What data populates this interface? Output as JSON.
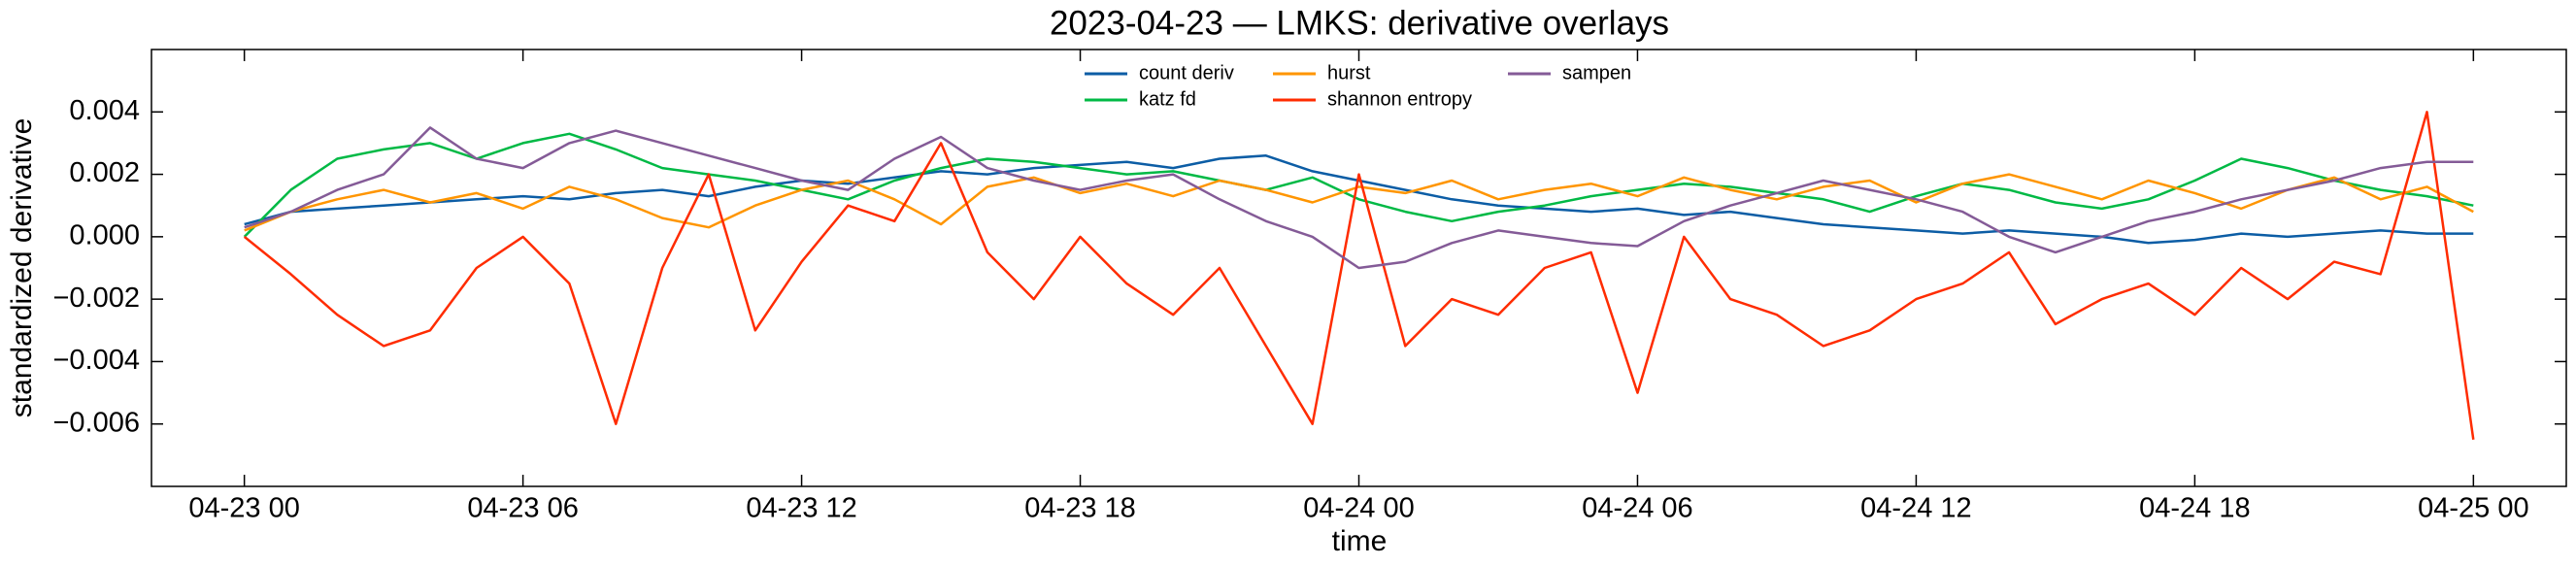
{
  "chart_data": {
    "type": "line",
    "title": "2023-04-23 — LMKS: derivative overlays",
    "x_label": "time",
    "y_label": "standardized derivative",
    "x": [
      "04-23 00",
      "04-23 01",
      "04-23 02",
      "04-23 03",
      "04-23 04",
      "04-23 05",
      "04-23 06",
      "04-23 07",
      "04-23 08",
      "04-23 09",
      "04-23 10",
      "04-23 11",
      "04-23 12",
      "04-23 13",
      "04-23 14",
      "04-23 15",
      "04-23 16",
      "04-23 17",
      "04-23 18",
      "04-23 19",
      "04-23 20",
      "04-23 21",
      "04-23 22",
      "04-23 23",
      "04-24 00",
      "04-24 01",
      "04-24 02",
      "04-24 03",
      "04-24 04",
      "04-24 05",
      "04-24 06",
      "04-24 07",
      "04-24 08",
      "04-24 09",
      "04-24 10",
      "04-24 11",
      "04-24 12",
      "04-24 13",
      "04-24 14",
      "04-24 15",
      "04-24 16",
      "04-24 17",
      "04-24 18",
      "04-24 19",
      "04-24 20",
      "04-24 21",
      "04-24 22",
      "04-24 23",
      "04-25 00"
    ],
    "series": [
      {
        "name": "count deriv",
        "color": "#0c5da5",
        "values": [
          0.0004,
          0.0008,
          0.0009,
          0.001,
          0.0011,
          0.0012,
          0.0013,
          0.0012,
          0.0014,
          0.0015,
          0.0013,
          0.0016,
          0.0018,
          0.0017,
          0.0019,
          0.0021,
          0.002,
          0.0022,
          0.0023,
          0.0024,
          0.0022,
          0.0025,
          0.0026,
          0.0021,
          0.0018,
          0.0015,
          0.0012,
          0.001,
          0.0009,
          0.0008,
          0.0009,
          0.0007,
          0.0008,
          0.0006,
          0.0004,
          0.0003,
          0.0002,
          0.0001,
          0.0002,
          0.0001,
          0,
          -0.0002,
          -0.0001,
          0.0001,
          0,
          0.0001,
          0.0002,
          0.0001,
          0.0001
        ]
      },
      {
        "name": "katz fd",
        "color": "#00b945",
        "values": [
          0,
          0.0015,
          0.0025,
          0.0028,
          0.003,
          0.0025,
          0.003,
          0.0033,
          0.0028,
          0.0022,
          0.002,
          0.0018,
          0.0015,
          0.0012,
          0.0018,
          0.0022,
          0.0025,
          0.0024,
          0.0022,
          0.002,
          0.0021,
          0.0018,
          0.0015,
          0.0019,
          0.0012,
          0.0008,
          0.0005,
          0.0008,
          0.001,
          0.0013,
          0.0015,
          0.0017,
          0.0016,
          0.0014,
          0.0012,
          0.0008,
          0.0013,
          0.0017,
          0.0015,
          0.0011,
          0.0009,
          0.0012,
          0.0018,
          0.0025,
          0.0022,
          0.0018,
          0.0015,
          0.0013,
          0.001
        ]
      },
      {
        "name": "hurst",
        "color": "#ff9500",
        "values": [
          0.0002,
          0.0008,
          0.0012,
          0.0015,
          0.0011,
          0.0014,
          0.0009,
          0.0016,
          0.0012,
          0.0006,
          0.0003,
          0.001,
          0.0015,
          0.0018,
          0.0012,
          0.0004,
          0.0016,
          0.0019,
          0.0014,
          0.0017,
          0.0013,
          0.0018,
          0.0015,
          0.0011,
          0.0016,
          0.0014,
          0.0018,
          0.0012,
          0.0015,
          0.0017,
          0.0013,
          0.0019,
          0.0015,
          0.0012,
          0.0016,
          0.0018,
          0.0011,
          0.0017,
          0.002,
          0.0016,
          0.0012,
          0.0018,
          0.0014,
          0.0009,
          0.0015,
          0.0019,
          0.0012,
          0.0016,
          0.0008
        ]
      },
      {
        "name": "shannon entropy",
        "color": "#ff2c00",
        "values": [
          0,
          -0.0012,
          -0.0025,
          -0.0035,
          -0.003,
          -0.001,
          0,
          -0.0015,
          -0.006,
          -0.001,
          0.002,
          -0.003,
          -0.0008,
          0.001,
          0.0005,
          0.003,
          -0.0005,
          -0.002,
          0,
          -0.0015,
          -0.0025,
          -0.001,
          -0.0035,
          -0.006,
          0.002,
          -0.0035,
          -0.002,
          -0.0025,
          -0.001,
          -0.0005,
          -0.005,
          0,
          -0.002,
          -0.0025,
          -0.0035,
          -0.003,
          -0.002,
          -0.0015,
          -0.0005,
          -0.0028,
          -0.002,
          -0.0015,
          -0.0025,
          -0.001,
          -0.002,
          -0.0008,
          -0.0012,
          0.004,
          -0.0065
        ]
      },
      {
        "name": "sampen",
        "color": "#845b97",
        "values": [
          0.0003,
          0.0008,
          0.0015,
          0.002,
          0.0035,
          0.0025,
          0.0022,
          0.003,
          0.0034,
          0.003,
          0.0026,
          0.0022,
          0.0018,
          0.0015,
          0.0025,
          0.0032,
          0.0022,
          0.0018,
          0.0015,
          0.0018,
          0.002,
          0.0012,
          0.0005,
          0,
          -0.001,
          -0.0008,
          -0.0002,
          0.0002,
          0,
          -0.0002,
          -0.0003,
          0.0005,
          0.001,
          0.0014,
          0.0018,
          0.0015,
          0.0012,
          0.0008,
          0,
          -0.0005,
          0,
          0.0005,
          0.0008,
          0.0012,
          0.0015,
          0.0018,
          0.0022,
          0.0024,
          0.0024
        ]
      }
    ],
    "xlim": [
      "04-22 22",
      "04-25 02"
    ],
    "xticks": [
      "04-23 00",
      "04-23 06",
      "04-23 12",
      "04-23 18",
      "04-24 00",
      "04-24 06",
      "04-24 12",
      "04-24 18",
      "04-25 00"
    ],
    "ylim": [
      -0.008,
      0.006
    ],
    "yticks": [
      {
        "value": -0.006,
        "label": "−0.006"
      },
      {
        "value": -0.004,
        "label": "−0.004"
      },
      {
        "value": -0.002,
        "label": "−0.002"
      },
      {
        "value": 0,
        "label": "0.000"
      },
      {
        "value": 0.002,
        "label": "0.002"
      },
      {
        "value": 0.004,
        "label": "0.004"
      }
    ],
    "legend": "upper center"
  }
}
